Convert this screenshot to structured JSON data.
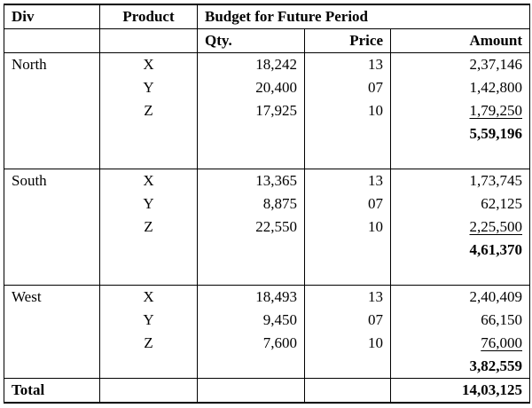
{
  "headers": {
    "div": "Div",
    "product": "Product",
    "budget": "Budget for Future Period",
    "qty": "Qty.",
    "price": "Price",
    "amount": "Amount"
  },
  "divisions": [
    {
      "name": "North",
      "rows": [
        {
          "product": "X",
          "qty": "18,242",
          "price": "13",
          "amount": "2,37,146"
        },
        {
          "product": "Y",
          "qty": "20,400",
          "price": "07",
          "amount": "1,42,800"
        },
        {
          "product": "Z",
          "qty": "17,925",
          "price": "10",
          "amount": "1,79,250"
        }
      ],
      "subtotal": "5,59,196"
    },
    {
      "name": "South",
      "rows": [
        {
          "product": "X",
          "qty": "13,365",
          "price": "13",
          "amount": "1,73,745"
        },
        {
          "product": "Y",
          "qty": "8,875",
          "price": "07",
          "amount": "62,125"
        },
        {
          "product": "Z",
          "qty": "22,550",
          "price": "10",
          "amount": "2,25,500"
        }
      ],
      "subtotal": "4,61,370"
    },
    {
      "name": "West",
      "rows": [
        {
          "product": "X",
          "qty": "18,493",
          "price": "13",
          "amount": "2,40,409"
        },
        {
          "product": "Y",
          "qty": "9,450",
          "price": "07",
          "amount": "66,150"
        },
        {
          "product": "Z",
          "qty": "7,600",
          "price": "10",
          "amount": "76,000"
        }
      ],
      "subtotal": "3,82,559"
    }
  ],
  "total": {
    "label": "Total",
    "amount": "14,03,125"
  }
}
